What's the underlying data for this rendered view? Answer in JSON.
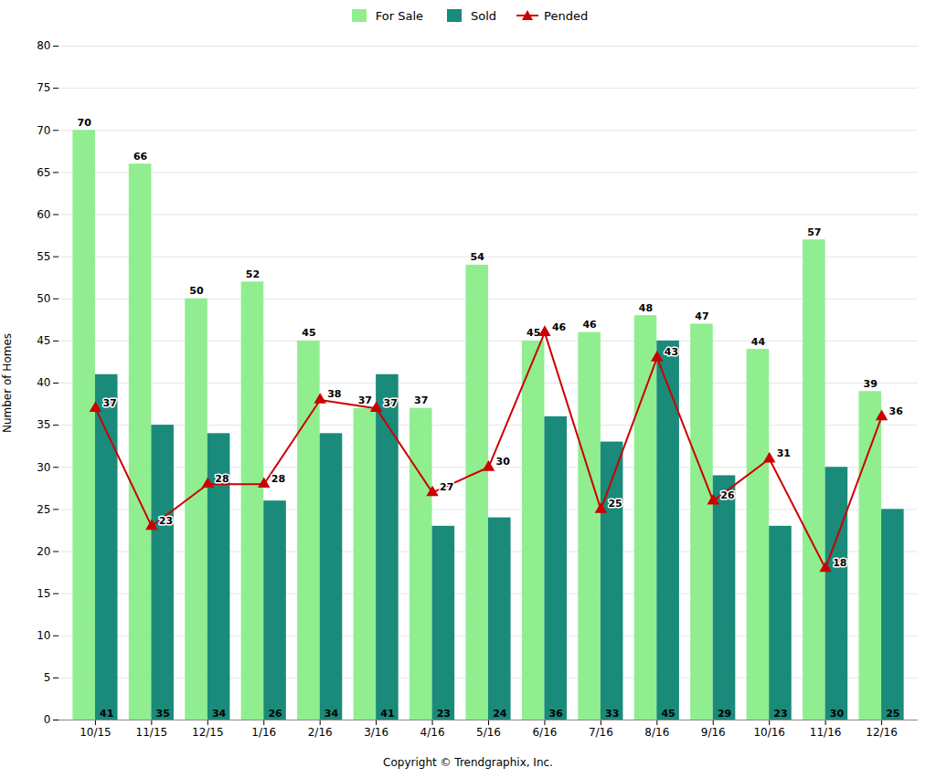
{
  "chart_data": {
    "type": "bar",
    "categories": [
      "10/15",
      "11/15",
      "12/15",
      "1/16",
      "2/16",
      "3/16",
      "4/16",
      "5/16",
      "6/16",
      "7/16",
      "8/16",
      "9/16",
      "10/16",
      "11/16",
      "12/16"
    ],
    "series": [
      {
        "name": "For Sale",
        "color": "#90EE90",
        "values": [
          70,
          66,
          50,
          52,
          45,
          37,
          37,
          54,
          45,
          46,
          48,
          47,
          44,
          57,
          39
        ]
      },
      {
        "name": "Sold",
        "color": "#1A8A7A",
        "values": [
          41,
          35,
          34,
          26,
          34,
          41,
          23,
          24,
          36,
          33,
          45,
          29,
          23,
          30,
          25
        ]
      },
      {
        "name": "Pended",
        "type": "line",
        "color": "#CC0000",
        "marker": "triangle",
        "values": [
          37,
          23,
          28,
          28,
          38,
          37,
          27,
          30,
          46,
          25,
          43,
          26,
          31,
          18,
          36
        ]
      }
    ],
    "ylabel": "Number of Homes",
    "ylim": [
      0,
      80
    ],
    "yticks": [
      0,
      5,
      10,
      15,
      20,
      25,
      30,
      35,
      40,
      45,
      50,
      55,
      60,
      65,
      70,
      75,
      80
    ],
    "grid": true,
    "data_labels": true,
    "annotations": [
      "Copyright © Trendgraphix, Inc."
    ]
  }
}
